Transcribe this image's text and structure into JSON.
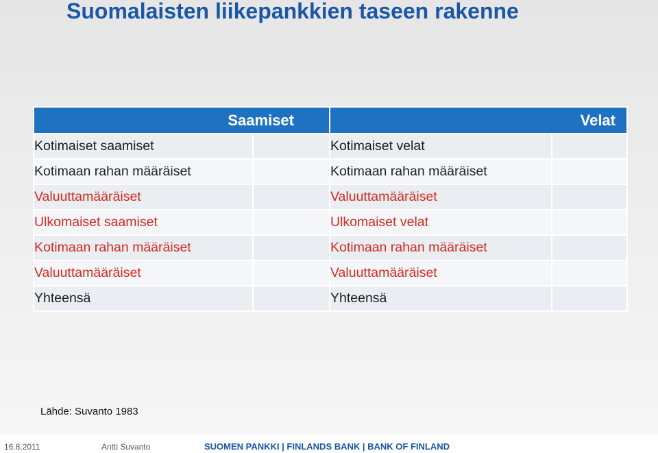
{
  "title": "Suomalaisten liikepankkien taseen rakenne",
  "table": {
    "left_header": "Saamiset",
    "right_header": "Velat",
    "rows": [
      {
        "left": "Kotimaiset saamiset",
        "right": "Kotimaiset velat"
      },
      {
        "left": "Kotimaan rahan määräiset",
        "right": "Kotimaan rahan määräiset"
      },
      {
        "left": "Valuuttamääräiset",
        "right": "Valuuttamääräiset"
      },
      {
        "left": "Ulkomaiset saamiset",
        "right": "Ulkomaiset velat"
      },
      {
        "left": "Kotimaan rahan määräiset",
        "right": "Kotimaan rahan määräiset"
      },
      {
        "left": "Valuuttamääräiset",
        "right": "Valuuttamääräiset"
      },
      {
        "left": "Yhteensä",
        "right": "Yhteensä"
      }
    ]
  },
  "source": "Lähde: Suvanto 1983",
  "footer": {
    "date": "16.8.2011",
    "author": "Antti Suvanto",
    "bank": "SUOMEN PANKKI | FINLANDS BANK | BANK OF FINLAND"
  },
  "colors": {
    "title": "#1a57a6",
    "header_bg": "#1f72c2",
    "red_text": "#d42a1f"
  }
}
